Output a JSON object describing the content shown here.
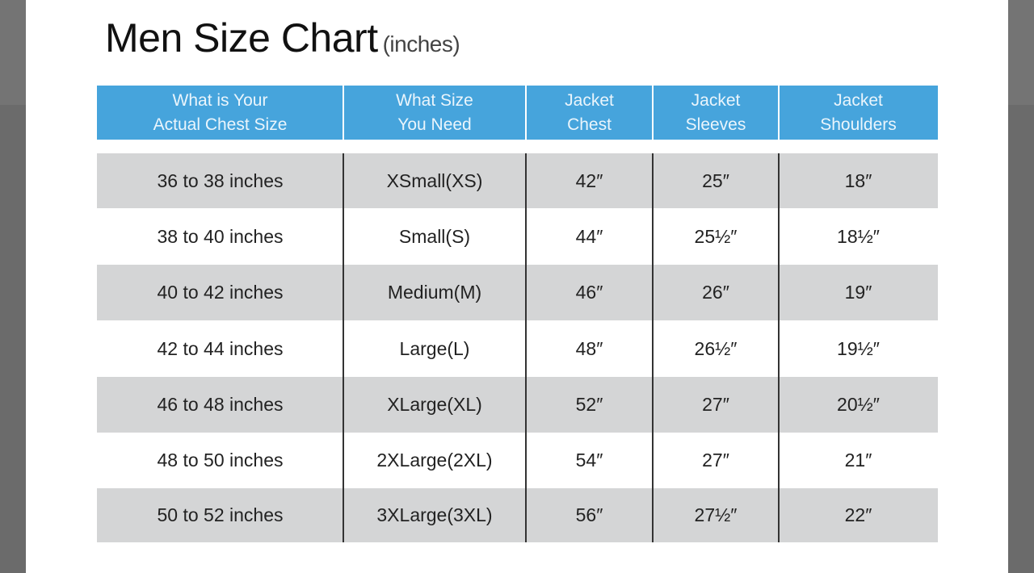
{
  "title": "Men Size Chart",
  "title_unit": "(inches)",
  "headers": [
    "What is Your\nActual Chest Size",
    "What Size\nYou Need",
    "Jacket\nChest",
    "Jacket\nSleeves",
    "Jacket\nShoulders"
  ],
  "rows": [
    [
      "36 to 38 inches",
      "XSmall(XS)",
      "42″",
      "25″",
      "18″"
    ],
    [
      "38 to 40 inches",
      "Small(S)",
      "44″",
      "25½″",
      "18½″"
    ],
    [
      "40 to 42 inches",
      "Medium(M)",
      "46″",
      "26″",
      "19″"
    ],
    [
      "42 to 44 inches",
      "Large(L)",
      "48″",
      "26½″",
      "19½″"
    ],
    [
      "46 to 48 inches",
      "XLarge(XL)",
      "52″",
      "27″",
      "20½″"
    ],
    [
      "48 to 50 inches",
      "2XLarge(2XL)",
      "54″",
      "27″",
      "21″"
    ],
    [
      "50 to 52 inches",
      "3XLarge(3XL)",
      "56″",
      "27½″",
      "22″"
    ]
  ],
  "colors": {
    "header": "#46a4dc",
    "stripe": "#d4d5d6",
    "backdrop": "#6b6b6b"
  }
}
